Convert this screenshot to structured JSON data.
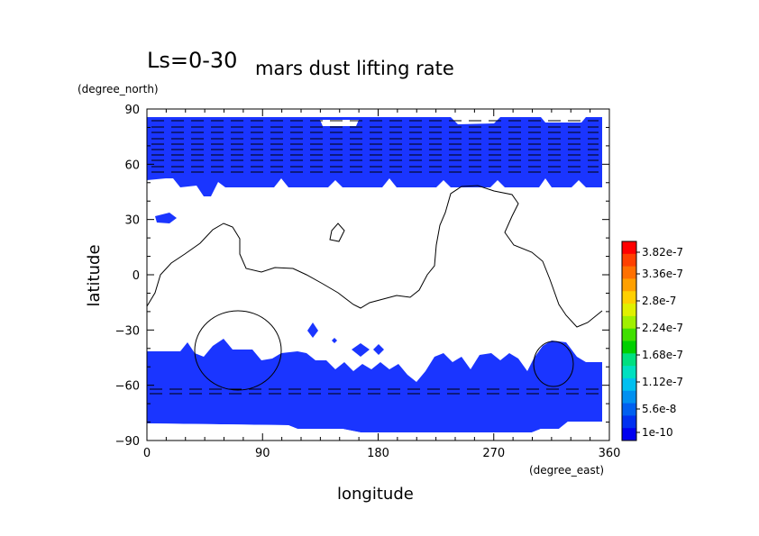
{
  "chart_data": {
    "type": "heatmap",
    "title_prefix": "Ls=0-30",
    "title": "mars dust lifting rate",
    "xlabel": "longitude",
    "ylabel": "latitude",
    "x_unit": "(degree_east)",
    "y_unit": "(degree_north)",
    "xlim": [
      0,
      360
    ],
    "ylim": [
      -90,
      90
    ],
    "x_ticks": [
      0,
      90,
      180,
      270,
      360
    ],
    "y_ticks": [
      90,
      60,
      30,
      0,
      -30,
      -60,
      -90
    ],
    "x_tick_labels": [
      "0",
      "90",
      "180",
      "270",
      "360"
    ],
    "y_tick_labels": [
      "90",
      "60",
      "30",
      "0",
      "−30",
      "−60",
      "−90"
    ],
    "colorbar": {
      "labels": [
        "3.82e-7",
        "3.36e-7",
        "2.8e-7",
        "2.24e-7",
        "1.68e-7",
        "1.12e-7",
        "5.6e-8",
        "1e-10"
      ],
      "colors": [
        "#ff0000",
        "#ff4000",
        "#ff7000",
        "#ffa000",
        "#ffd000",
        "#e0f000",
        "#a0f000",
        "#40e000",
        "#00d000",
        "#00e080",
        "#00e0c0",
        "#00c0f0",
        "#0090f0",
        "#0060f0",
        "#0030f0",
        "#0000f0"
      ]
    },
    "fill_color": "#1a35ff",
    "regions": [
      {
        "name": "north-polar-band",
        "lat_from": 48,
        "lat_to": 86,
        "lon_from": 0,
        "lon_to": 355
      },
      {
        "name": "south-polar-band",
        "lat_from": -84,
        "lat_to": -42,
        "lon_from": 0,
        "lon_to": 355
      }
    ]
  }
}
